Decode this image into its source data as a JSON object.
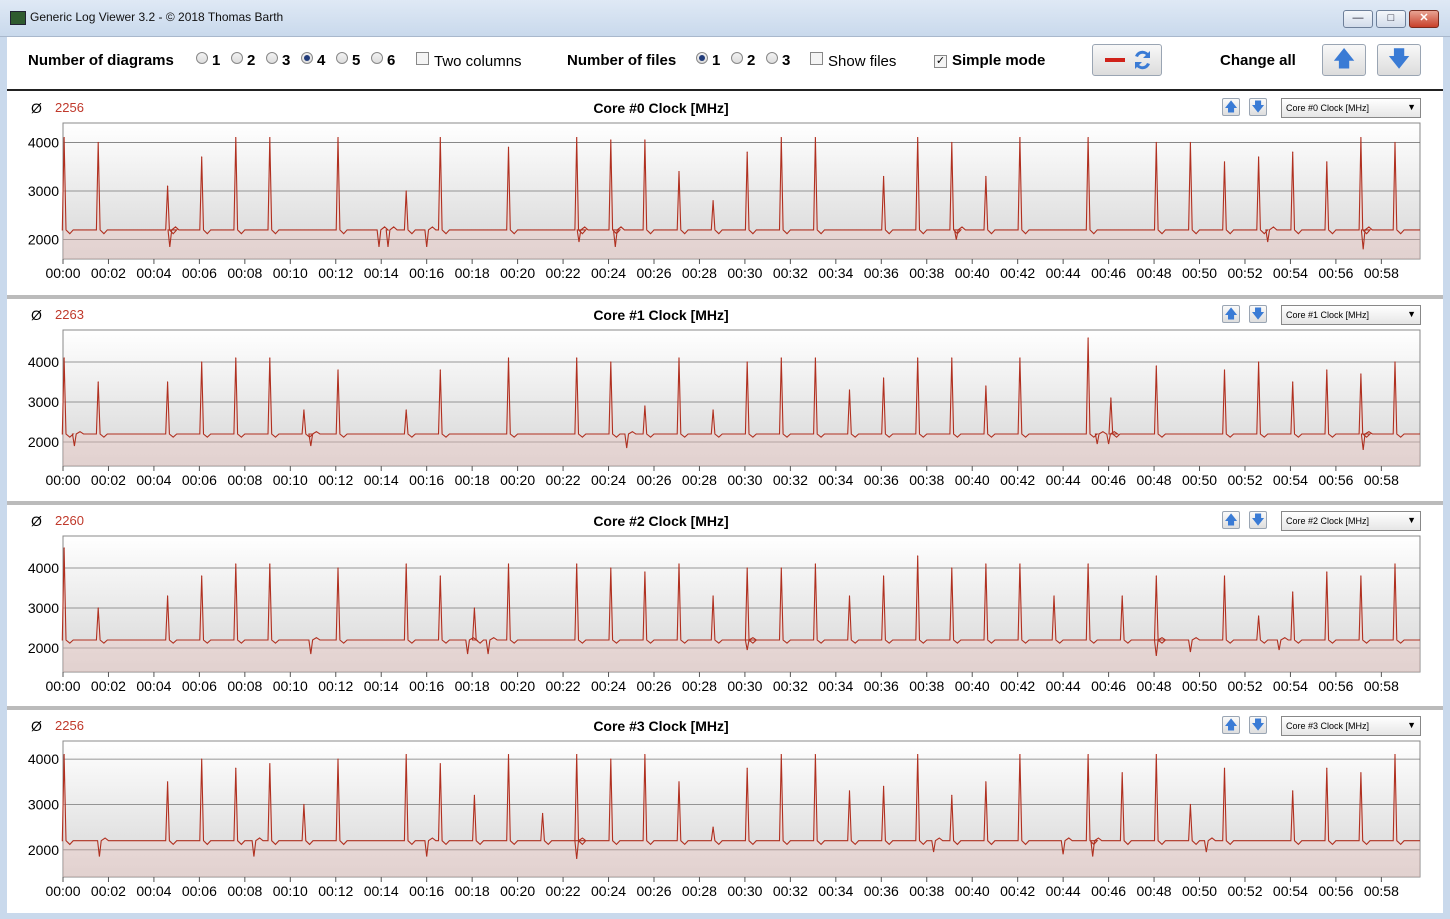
{
  "window": {
    "title": "Generic Log Viewer 3.2 - © 2018 Thomas Barth",
    "minimize_label": "—",
    "maximize_label": "□",
    "close_label": "✕"
  },
  "toolbar": {
    "num_diagrams_label": "Number of diagrams",
    "diagram_options": [
      "1",
      "2",
      "3",
      "4",
      "5",
      "6"
    ],
    "diagram_selected": "4",
    "two_columns_label": "Two columns",
    "two_columns_checked": false,
    "num_files_label": "Number of files",
    "file_options": [
      "1",
      "2",
      "3"
    ],
    "file_selected": "1",
    "show_files_label": "Show files",
    "show_files_checked": false,
    "simple_mode_label": "Simple mode",
    "simple_mode_checked": true,
    "change_all_label": "Change all",
    "check_mark": "✓",
    "swap_icon": "swap-icon",
    "up_glyph": "🡅",
    "down_glyph": "🡇"
  },
  "colors": {
    "series": "#b03020",
    "avg_text": "#c0392b",
    "button_arrow": "#3a7bd5"
  },
  "panels": [
    {
      "avg_symbol": "Ø",
      "avg": "2256",
      "title": "Core #0 Clock [MHz]",
      "select_value": "Core #0 Clock [MHz]"
    },
    {
      "avg_symbol": "Ø",
      "avg": "2263",
      "title": "Core #1 Clock [MHz]",
      "select_value": "Core #1 Clock [MHz]"
    },
    {
      "avg_symbol": "Ø",
      "avg": "2260",
      "title": "Core #2 Clock [MHz]",
      "select_value": "Core #2 Clock [MHz]"
    },
    {
      "avg_symbol": "Ø",
      "avg": "2256",
      "title": "Core #3 Clock [MHz]",
      "select_value": "Core #3 Clock [MHz]"
    }
  ],
  "chart_data": [
    {
      "type": "line",
      "title": "Core #0 Clock [MHz]",
      "x_ticks": [
        "00:00",
        "00:02",
        "00:04",
        "00:06",
        "00:08",
        "00:10",
        "00:12",
        "00:14",
        "00:16",
        "00:18",
        "00:20",
        "00:22",
        "00:24",
        "00:26",
        "00:28",
        "00:30",
        "00:32",
        "00:34",
        "00:36",
        "00:38",
        "00:40",
        "00:42",
        "00:44",
        "00:46",
        "00:48",
        "00:50",
        "00:52",
        "00:54",
        "00:56",
        "00:58"
      ],
      "x_range_minutes": [
        0,
        59.7
      ],
      "ylim": [
        1600,
        4400
      ],
      "y_ticks": [
        2000,
        3000,
        4000
      ],
      "grid": true,
      "baseline": 2200,
      "spikes": [
        [
          0.05,
          4100
        ],
        [
          1.55,
          4000
        ],
        [
          4.6,
          3100
        ],
        [
          6.1,
          3700
        ],
        [
          7.6,
          4100
        ],
        [
          9.1,
          4100
        ],
        [
          12.1,
          4100
        ],
        [
          15.1,
          3000
        ],
        [
          16.6,
          4100
        ],
        [
          19.6,
          3900
        ],
        [
          22.6,
          4100
        ],
        [
          24.1,
          4050
        ],
        [
          25.6,
          4050
        ],
        [
          27.1,
          3400
        ],
        [
          28.6,
          2800
        ],
        [
          30.1,
          3800
        ],
        [
          31.6,
          4100
        ],
        [
          33.1,
          4100
        ],
        [
          36.1,
          3300
        ],
        [
          37.6,
          4100
        ],
        [
          39.1,
          4000
        ],
        [
          40.6,
          3300
        ],
        [
          42.1,
          4100
        ],
        [
          45.1,
          4100
        ],
        [
          48.1,
          4000
        ],
        [
          49.6,
          4000
        ],
        [
          51.1,
          3600
        ],
        [
          52.6,
          3700
        ],
        [
          54.1,
          3800
        ],
        [
          55.6,
          3600
        ],
        [
          57.1,
          4100
        ],
        [
          58.6,
          4000
        ]
      ],
      "dips": [
        [
          4.7,
          1850
        ],
        [
          13.9,
          1850
        ],
        [
          14.3,
          1850
        ],
        [
          16.0,
          1850
        ],
        [
          22.7,
          1950
        ],
        [
          24.3,
          1850
        ],
        [
          39.3,
          2000
        ],
        [
          53.0,
          1950
        ],
        [
          57.2,
          1800
        ]
      ]
    },
    {
      "type": "line",
      "title": "Core #1 Clock [MHz]",
      "x_ticks": [
        "00:00",
        "00:02",
        "00:04",
        "00:06",
        "00:08",
        "00:10",
        "00:12",
        "00:14",
        "00:16",
        "00:18",
        "00:20",
        "00:22",
        "00:24",
        "00:26",
        "00:28",
        "00:30",
        "00:32",
        "00:34",
        "00:36",
        "00:38",
        "00:40",
        "00:42",
        "00:44",
        "00:46",
        "00:48",
        "00:50",
        "00:52",
        "00:54",
        "00:56",
        "00:58"
      ],
      "x_range_minutes": [
        0,
        59.7
      ],
      "ylim": [
        1400,
        4800
      ],
      "y_ticks": [
        2000,
        3000,
        4000
      ],
      "grid": true,
      "baseline": 2200,
      "spikes": [
        [
          0.05,
          4100
        ],
        [
          1.55,
          3500
        ],
        [
          4.6,
          3500
        ],
        [
          6.1,
          4000
        ],
        [
          7.6,
          4100
        ],
        [
          9.1,
          4100
        ],
        [
          10.6,
          2800
        ],
        [
          12.1,
          3800
        ],
        [
          15.1,
          2800
        ],
        [
          16.6,
          3800
        ],
        [
          19.6,
          4100
        ],
        [
          22.6,
          4100
        ],
        [
          24.1,
          4000
        ],
        [
          25.6,
          2900
        ],
        [
          27.1,
          4100
        ],
        [
          28.6,
          2800
        ],
        [
          30.1,
          4000
        ],
        [
          31.6,
          4100
        ],
        [
          33.1,
          4100
        ],
        [
          34.6,
          3300
        ],
        [
          36.1,
          3600
        ],
        [
          37.6,
          4100
        ],
        [
          39.1,
          4100
        ],
        [
          40.6,
          3400
        ],
        [
          42.1,
          4100
        ],
        [
          45.1,
          4600
        ],
        [
          46.1,
          3100
        ],
        [
          48.1,
          3900
        ],
        [
          51.1,
          3800
        ],
        [
          52.6,
          4000
        ],
        [
          54.1,
          3500
        ],
        [
          55.6,
          3800
        ],
        [
          57.1,
          3700
        ],
        [
          58.6,
          4000
        ]
      ],
      "dips": [
        [
          0.5,
          1900
        ],
        [
          10.9,
          1900
        ],
        [
          24.8,
          1850
        ],
        [
          45.5,
          1950
        ],
        [
          46.0,
          1950
        ],
        [
          57.2,
          1800
        ]
      ]
    },
    {
      "type": "line",
      "title": "Core #2 Clock [MHz]",
      "x_ticks": [
        "00:00",
        "00:02",
        "00:04",
        "00:06",
        "00:08",
        "00:10",
        "00:12",
        "00:14",
        "00:16",
        "00:18",
        "00:20",
        "00:22",
        "00:24",
        "00:26",
        "00:28",
        "00:30",
        "00:32",
        "00:34",
        "00:36",
        "00:38",
        "00:40",
        "00:42",
        "00:44",
        "00:46",
        "00:48",
        "00:50",
        "00:52",
        "00:54",
        "00:56",
        "00:58"
      ],
      "x_range_minutes": [
        0,
        59.7
      ],
      "ylim": [
        1400,
        4800
      ],
      "y_ticks": [
        2000,
        3000,
        4000
      ],
      "grid": true,
      "baseline": 2200,
      "spikes": [
        [
          0.05,
          4500
        ],
        [
          1.55,
          3000
        ],
        [
          4.6,
          3300
        ],
        [
          6.1,
          3800
        ],
        [
          7.6,
          4100
        ],
        [
          9.1,
          4100
        ],
        [
          12.1,
          4000
        ],
        [
          15.1,
          4100
        ],
        [
          16.6,
          3800
        ],
        [
          18.1,
          3000
        ],
        [
          19.6,
          4100
        ],
        [
          22.6,
          4100
        ],
        [
          24.1,
          4000
        ],
        [
          25.6,
          3900
        ],
        [
          27.1,
          4100
        ],
        [
          28.6,
          3300
        ],
        [
          30.1,
          4000
        ],
        [
          31.6,
          4000
        ],
        [
          33.1,
          4100
        ],
        [
          34.6,
          3300
        ],
        [
          36.1,
          3800
        ],
        [
          37.6,
          4300
        ],
        [
          39.1,
          4000
        ],
        [
          40.6,
          4100
        ],
        [
          42.1,
          4100
        ],
        [
          43.6,
          3300
        ],
        [
          45.1,
          4100
        ],
        [
          46.6,
          3300
        ],
        [
          48.1,
          3800
        ],
        [
          51.1,
          3800
        ],
        [
          52.6,
          2800
        ],
        [
          54.1,
          3400
        ],
        [
          55.6,
          3900
        ],
        [
          57.1,
          3800
        ],
        [
          58.6,
          4100
        ]
      ],
      "dips": [
        [
          10.9,
          1850
        ],
        [
          17.8,
          1850
        ],
        [
          18.7,
          1850
        ],
        [
          30.1,
          1950
        ],
        [
          48.1,
          1800
        ],
        [
          49.6,
          1900
        ],
        [
          53.5,
          1950
        ]
      ]
    },
    {
      "type": "line",
      "title": "Core #3 Clock [MHz]",
      "x_ticks": [
        "00:00",
        "00:02",
        "00:04",
        "00:06",
        "00:08",
        "00:10",
        "00:12",
        "00:14",
        "00:16",
        "00:18",
        "00:20",
        "00:22",
        "00:24",
        "00:26",
        "00:28",
        "00:30",
        "00:32",
        "00:34",
        "00:36",
        "00:38",
        "00:40",
        "00:42",
        "00:44",
        "00:46",
        "00:48",
        "00:50",
        "00:52",
        "00:54",
        "00:56",
        "00:58"
      ],
      "x_range_minutes": [
        0,
        59.7
      ],
      "ylim": [
        1400,
        4400
      ],
      "y_ticks": [
        2000,
        3000,
        4000
      ],
      "grid": true,
      "baseline": 2200,
      "spikes": [
        [
          0.05,
          4100
        ],
        [
          4.6,
          3500
        ],
        [
          6.1,
          4000
        ],
        [
          7.6,
          3800
        ],
        [
          9.1,
          3900
        ],
        [
          10.6,
          3000
        ],
        [
          12.1,
          4000
        ],
        [
          15.1,
          4100
        ],
        [
          16.6,
          3900
        ],
        [
          18.1,
          3200
        ],
        [
          19.6,
          4100
        ],
        [
          21.1,
          2800
        ],
        [
          22.6,
          4100
        ],
        [
          24.1,
          4000
        ],
        [
          25.6,
          4100
        ],
        [
          27.1,
          3500
        ],
        [
          28.6,
          2500
        ],
        [
          30.1,
          3800
        ],
        [
          31.6,
          4100
        ],
        [
          33.1,
          4100
        ],
        [
          34.6,
          3300
        ],
        [
          36.1,
          3400
        ],
        [
          37.6,
          4100
        ],
        [
          39.1,
          3200
        ],
        [
          40.6,
          3500
        ],
        [
          42.1,
          4100
        ],
        [
          45.1,
          4100
        ],
        [
          46.6,
          3700
        ],
        [
          48.1,
          4100
        ],
        [
          49.6,
          3000
        ],
        [
          51.1,
          3800
        ],
        [
          54.1,
          3300
        ],
        [
          55.6,
          3800
        ],
        [
          57.1,
          3700
        ],
        [
          58.6,
          4100
        ]
      ],
      "dips": [
        [
          1.6,
          1850
        ],
        [
          8.4,
          1850
        ],
        [
          16.0,
          1850
        ],
        [
          22.6,
          1800
        ],
        [
          38.3,
          1950
        ],
        [
          44.0,
          1900
        ],
        [
          45.3,
          1850
        ],
        [
          50.3,
          1950
        ]
      ]
    }
  ]
}
